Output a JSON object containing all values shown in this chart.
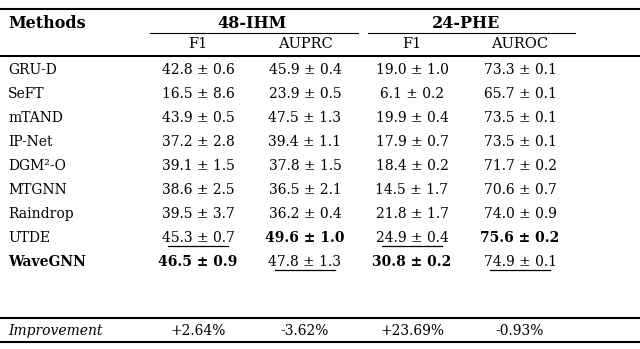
{
  "col_headers_level1_left": "Methods",
  "col_headers_level1_mid1": "48-IHM",
  "col_headers_level1_mid2": "24-PHE",
  "col_headers_level2": [
    "F1",
    "AUPRC",
    "F1",
    "AUROC"
  ],
  "rows": [
    [
      "GRU-D",
      "42.8 ± 0.6",
      "45.9 ± 0.4",
      "19.0 ± 1.0",
      "73.3 ± 0.1"
    ],
    [
      "SeFT",
      "16.5 ± 8.6",
      "23.9 ± 0.5",
      "6.1 ± 0.2",
      "65.7 ± 0.1"
    ],
    [
      "mTAND",
      "43.9 ± 0.5",
      "47.5 ± 1.3",
      "19.9 ± 0.4",
      "73.5 ± 0.1"
    ],
    [
      "IP-Net",
      "37.2 ± 2.8",
      "39.4 ± 1.1",
      "17.9 ± 0.7",
      "73.5 ± 0.1"
    ],
    [
      "DGM²-O",
      "39.1 ± 1.5",
      "37.8 ± 1.5",
      "18.4 ± 0.2",
      "71.7 ± 0.2"
    ],
    [
      "MTGNN",
      "38.6 ± 2.5",
      "36.5 ± 2.1",
      "14.5 ± 1.7",
      "70.6 ± 0.7"
    ],
    [
      "Raindrop",
      "39.5 ± 3.7",
      "36.2 ± 0.4",
      "21.8 ± 1.7",
      "74.0 ± 0.9"
    ],
    [
      "UTDE",
      "45.3 ± 0.7",
      "49.6 ± 1.0",
      "24.9 ± 0.4",
      "75.6 ± 0.2"
    ],
    [
      "WaveGNN",
      "46.5 ± 0.9",
      "47.8 ± 1.3",
      "30.8 ± 0.2",
      "74.9 ± 0.1"
    ]
  ],
  "improvement_row": [
    "Improvement",
    "+2.64%",
    "-3.62%",
    "+23.69%",
    "-0.93%"
  ],
  "bold_cells": {
    "7_2": true,
    "7_4": true,
    "8_1": true,
    "8_3": true
  },
  "underline_cells": {
    "7_1": true,
    "7_3": true,
    "8_2": true,
    "8_4": true
  },
  "bold_method": [
    false,
    false,
    false,
    false,
    false,
    false,
    false,
    false,
    true
  ],
  "background_color": "#ffffff",
  "text_color": "#000000"
}
